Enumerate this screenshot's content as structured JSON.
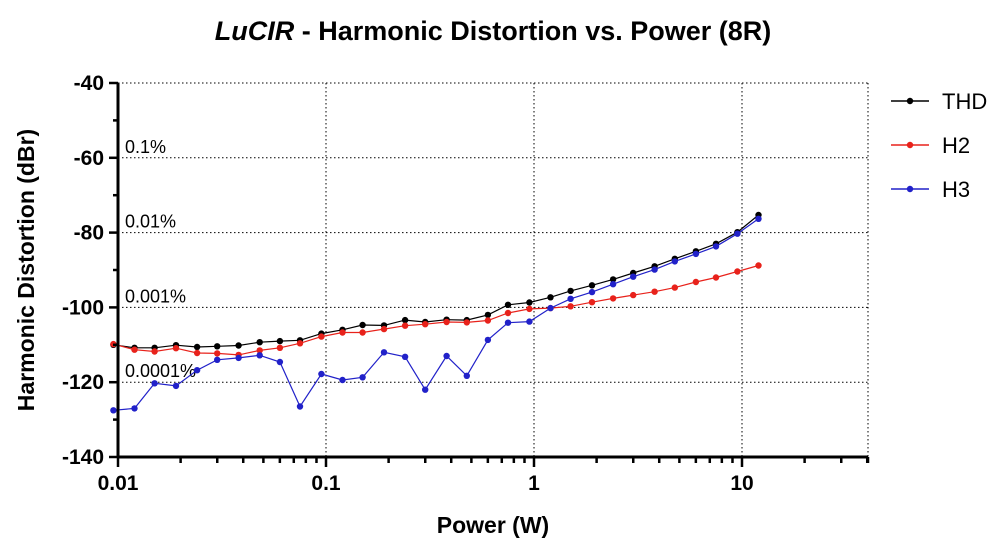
{
  "chart_data": {
    "type": "line",
    "title_italic": "LuCIR",
    "title_rest": " - Harmonic Distortion vs. Power (8R)",
    "xlabel": "Power (W)",
    "ylabel": "Harmonic Distortion (dBr)",
    "x_scale": "log",
    "xlim": [
      0.01,
      40
    ],
    "ylim": [
      -140,
      -40
    ],
    "x_ticks": [
      0.01,
      0.1,
      1,
      10
    ],
    "x_tick_labels": [
      "0.01",
      "0.1",
      "1",
      "10"
    ],
    "y_ticks": [
      -40,
      -60,
      -80,
      -100,
      -120,
      -140
    ],
    "y_tick_labels": [
      "-40",
      "-60",
      "-80",
      "-100",
      "-120",
      "-140"
    ],
    "grid": "dotted",
    "legend_position": "right",
    "reference_lines": [
      {
        "label": "0.1%",
        "y": -60
      },
      {
        "label": "0.01%",
        "y": -80
      },
      {
        "label": "0.001%",
        "y": -100
      },
      {
        "label": "0.0001%",
        "y": -120
      }
    ],
    "x": [
      0.0095,
      0.012,
      0.015,
      0.019,
      0.024,
      0.03,
      0.038,
      0.048,
      0.06,
      0.075,
      0.095,
      0.12,
      0.15,
      0.19,
      0.24,
      0.3,
      0.38,
      0.475,
      0.6,
      0.75,
      0.95,
      1.2,
      1.5,
      1.9,
      2.4,
      3.0,
      3.8,
      4.75,
      6.0,
      7.5,
      9.5,
      12.0
    ],
    "series": [
      {
        "name": "THD",
        "color": "#000000",
        "values": [
          -110,
          -110.8,
          -110.8,
          -110.1,
          -110.6,
          -110.4,
          -110.2,
          -109.3,
          -109.0,
          -108.8,
          -107.0,
          -106.0,
          -104.7,
          -104.8,
          -103.4,
          -103.9,
          -103.3,
          -103.4,
          -102.0,
          -99.3,
          -98.7,
          -97.3,
          -95.6,
          -94.1,
          -92.5,
          -90.8,
          -89.0,
          -87.0,
          -85.0,
          -83.0,
          -79.9,
          -75.3
        ]
      },
      {
        "name": "H2",
        "color": "#e8221b",
        "values": [
          -109.8,
          -111.3,
          -111.8,
          -110.9,
          -112.2,
          -112.3,
          -112.7,
          -111.5,
          -110.8,
          -109.6,
          -107.8,
          -106.7,
          -106.7,
          -105.8,
          -104.9,
          -104.5,
          -103.9,
          -104.0,
          -103.5,
          -101.5,
          -100.4,
          -100.2,
          -99.7,
          -98.6,
          -97.6,
          -96.7,
          -95.8,
          -94.7,
          -93.2,
          -92.0,
          -90.4,
          -88.8
        ]
      },
      {
        "name": "H3",
        "color": "#2121c9",
        "values": [
          -127.5,
          -127.0,
          -120.3,
          -121.0,
          -116.8,
          -114.0,
          -113.5,
          -112.8,
          -114.6,
          -126.5,
          -117.8,
          -119.4,
          -118.7,
          -112.0,
          -113.2,
          -122.0,
          -113.0,
          -118.3,
          -108.7,
          -104.1,
          -103.8,
          -100.2,
          -97.7,
          -95.9,
          -93.8,
          -91.8,
          -89.9,
          -87.7,
          -85.7,
          -83.7,
          -80.3,
          -76.3
        ]
      }
    ]
  }
}
